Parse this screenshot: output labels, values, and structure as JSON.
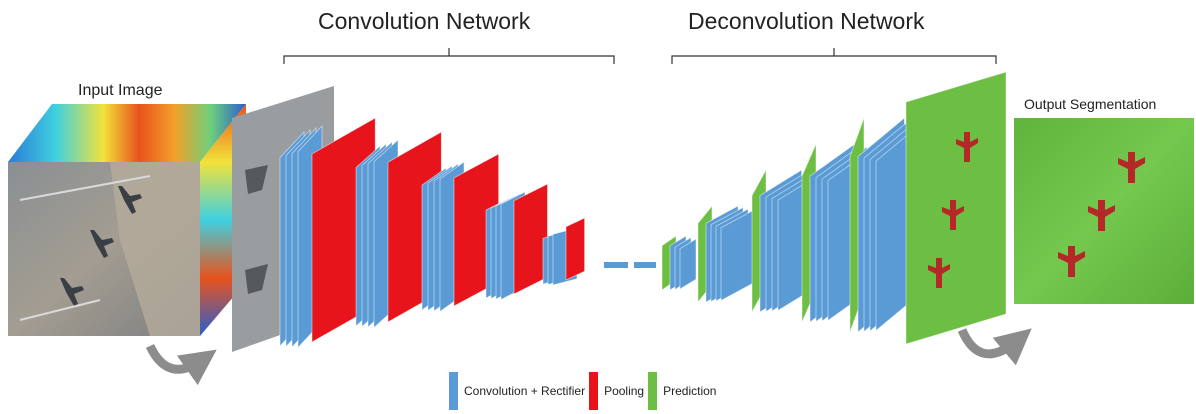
{
  "titles": {
    "convolution": "Convolution  Network",
    "deconvolution": "Deconvolution  Network"
  },
  "labels": {
    "input": "Input Image",
    "output": "Output Segmentation"
  },
  "legend": [
    {
      "label": "Convolution + Rectifier",
      "color": "#5b9bd5"
    },
    {
      "label": "Pooling",
      "color": "#e8141c"
    },
    {
      "label": "Prediction",
      "color": "#6cbf43"
    }
  ],
  "colors": {
    "conv": "#5b9bd5",
    "conv_dark": "#3f7fbf",
    "pool": "#e8141c",
    "pred": "#6cbf43",
    "plane": "#b8742e",
    "arrow": "#8c8c8c"
  }
}
